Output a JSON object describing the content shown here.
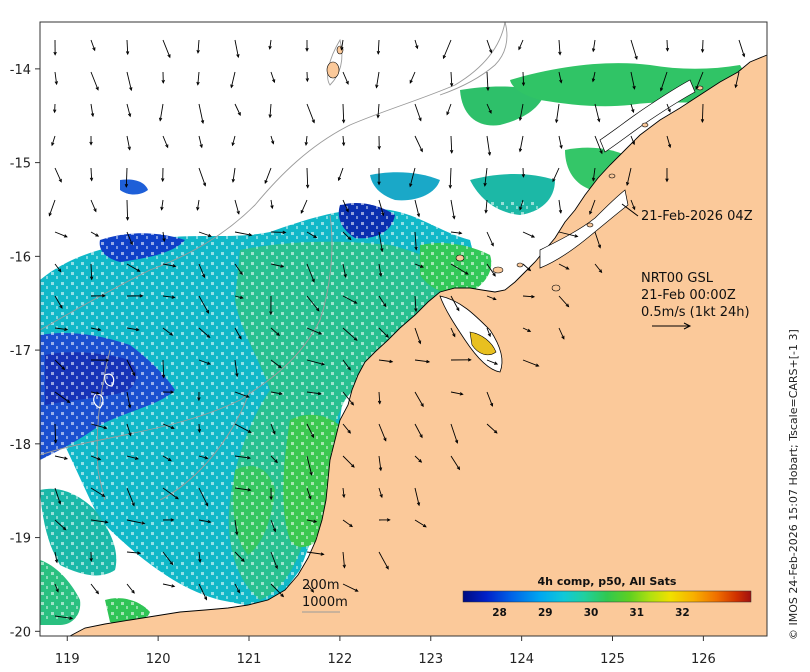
{
  "map": {
    "x_ticks": [
      "119",
      "120",
      "121",
      "122",
      "123",
      "124",
      "125",
      "126"
    ],
    "y_ticks": [
      "-14",
      "-15",
      "-16",
      "-17",
      "-18",
      "-19",
      "-20"
    ],
    "lon_range": [
      118.7,
      126.7
    ],
    "lat_range": [
      -20.05,
      -13.5
    ],
    "colors": {
      "land": "#fbc99a",
      "frame": "#333333",
      "coast": "#000000",
      "isobath": "#9a9a9a"
    }
  },
  "annotations": {
    "sst_time": "21-Feb-2026 04Z",
    "current_title": "NRT00 GSL",
    "current_time": "21-Feb 00:00Z",
    "current_scale": "0.5m/s (1kt 24h)",
    "isobath_200": "200m",
    "isobath_1000": "1000m"
  },
  "colorbar": {
    "title": "4h comp, p50, All Sats",
    "ticks": [
      "28",
      "29",
      "30",
      "31",
      "32"
    ],
    "range": [
      27.2,
      33.5
    ],
    "colors": [
      "#000c80",
      "#0020c8",
      "#0064e8",
      "#00a8f0",
      "#10c8d8",
      "#20d0a0",
      "#30c850",
      "#60d020",
      "#b0e010",
      "#f0e000",
      "#f8b000",
      "#f07000",
      "#d03000",
      "#a01010"
    ]
  },
  "credit": "© IMOS 24-Feb-2026 15:07 Hobart; Tscale=CARS+[-1 3]"
}
